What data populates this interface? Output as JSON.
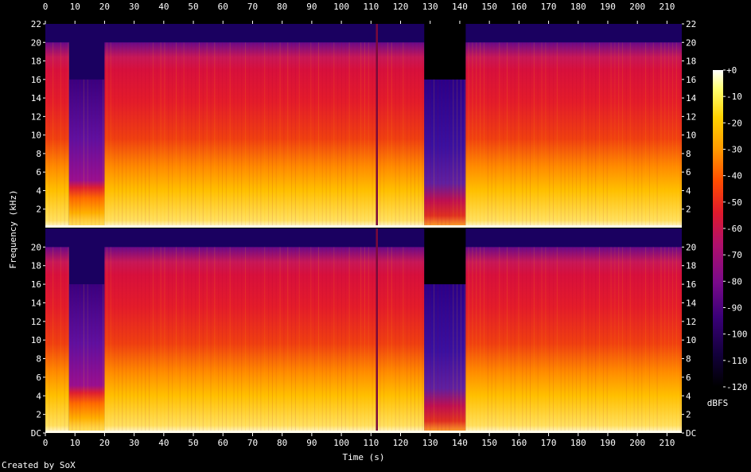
{
  "chart_data": {
    "type": "heatmap",
    "title": "",
    "xlabel": "Time (s)",
    "ylabel": "Frequency (kHz)",
    "xlim": [
      0,
      215
    ],
    "ylim_khz": [
      0,
      22
    ],
    "x_ticks": [
      0,
      10,
      20,
      30,
      40,
      50,
      60,
      70,
      80,
      90,
      100,
      110,
      120,
      130,
      140,
      150,
      160,
      170,
      180,
      190,
      200,
      210
    ],
    "y_tick_labels_top": [
      "2",
      "4",
      "6",
      "8",
      "10",
      "12",
      "14",
      "16",
      "18",
      "20",
      "22"
    ],
    "y_tick_labels_bottom": [
      "DC",
      "2",
      "4",
      "6",
      "8",
      "10",
      "12",
      "14",
      "16",
      "18",
      "20"
    ],
    "y_tick_values_khz": [
      0,
      2,
      4,
      6,
      8,
      10,
      12,
      14,
      16,
      18,
      20,
      22
    ],
    "channels": 2,
    "colorbar": {
      "label": "dBFS",
      "range": [
        -120,
        0
      ],
      "ticks": [
        "+0",
        "-10",
        "-20",
        "-30",
        "-40",
        "-50",
        "-60",
        "-70",
        "-80",
        "-90",
        "-100",
        "-110",
        "-120"
      ]
    },
    "segments": [
      {
        "t_start": 0,
        "t_end": 8,
        "cutoff_khz": 20,
        "level": "loud"
      },
      {
        "t_start": 8,
        "t_end": 20,
        "cutoff_khz": 16,
        "level": "quiet"
      },
      {
        "t_start": 20,
        "t_end": 128,
        "cutoff_khz": 20,
        "level": "loud"
      },
      {
        "t_start": 128,
        "t_end": 142,
        "cutoff_khz": 16,
        "level": "very-quiet"
      },
      {
        "t_start": 142,
        "t_end": 215,
        "cutoff_khz": 20,
        "level": "loud"
      }
    ],
    "notable_lines_s": [
      112
    ]
  },
  "footer": {
    "credit": "Created by SoX"
  },
  "colors": {
    "background": "#000000",
    "colormap": [
      "#000000",
      "#12003a",
      "#3a0078",
      "#7a0a8a",
      "#b0106c",
      "#e01a2c",
      "#ff4d00",
      "#ff9a00",
      "#ffd200",
      "#ffff70",
      "#ffffff"
    ]
  }
}
